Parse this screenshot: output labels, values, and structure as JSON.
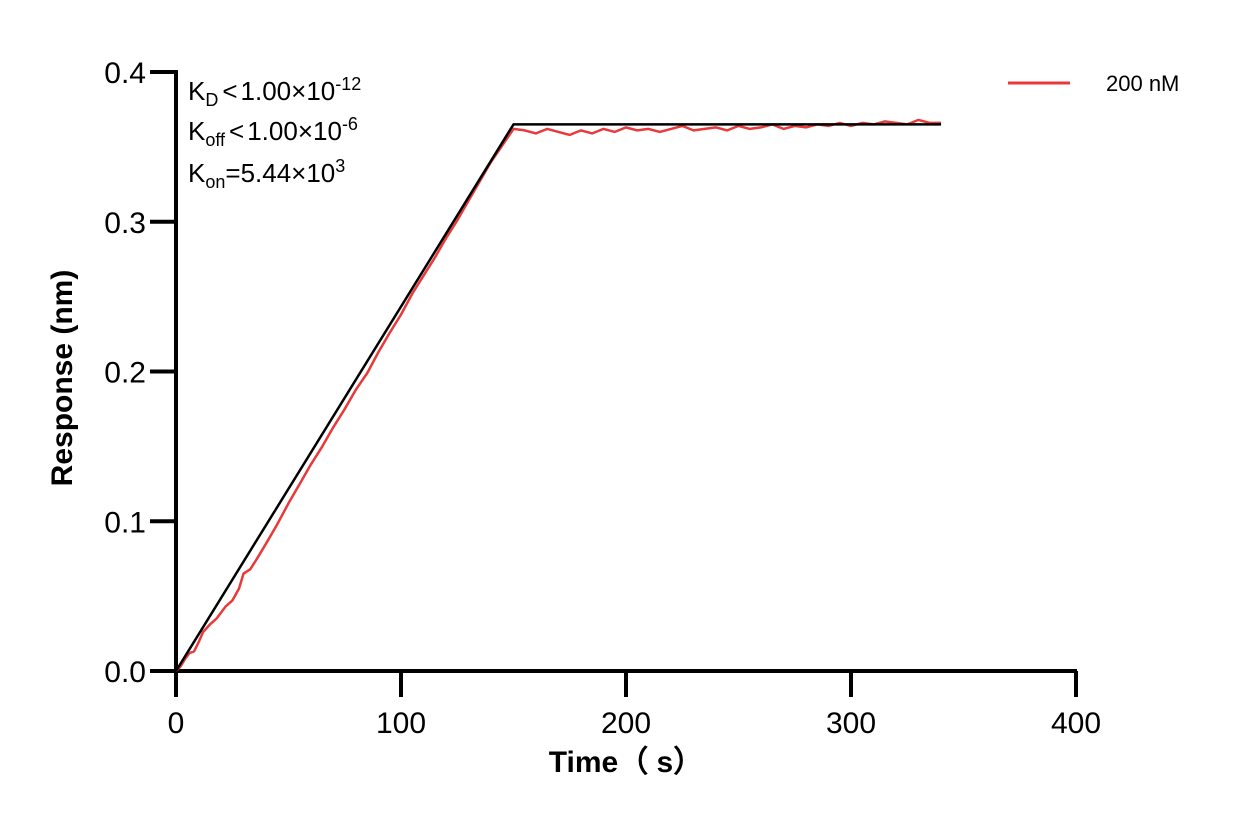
{
  "chart_data": {
    "type": "line",
    "xlabel": "Time（ s）",
    "ylabel": "Response (nm)",
    "xlim": [
      0,
      400
    ],
    "ylim": [
      0,
      0.4
    ],
    "x_ticks": [
      "0",
      "100",
      "200",
      "300",
      "400"
    ],
    "y_ticks": [
      "0.0",
      "0.1",
      "0.2",
      "0.3",
      "0.4"
    ],
    "legend_position": "top-right",
    "annotations": {
      "kd": {
        "base": "K",
        "sub": "D",
        "rel": "<",
        "mantissa": "1.00×10",
        "exp": "-12"
      },
      "koff": {
        "base": "K",
        "sub": "off",
        "rel": "<",
        "mantissa": "1.00×10",
        "exp": "-6"
      },
      "kon": {
        "base": "K",
        "sub": "on",
        "rel": "=",
        "mantissa": "5.44×10",
        "exp": "3"
      }
    },
    "series": [
      {
        "name": "200 nM",
        "color": "#e8393b",
        "x": [
          0,
          2,
          4,
          6,
          8,
          10,
          12,
          15,
          18,
          20,
          22,
          25,
          28,
          30,
          33,
          36,
          40,
          45,
          50,
          55,
          60,
          65,
          70,
          75,
          80,
          85,
          90,
          95,
          100,
          105,
          110,
          115,
          120,
          125,
          130,
          135,
          140,
          145,
          150,
          155,
          160,
          165,
          170,
          175,
          180,
          185,
          190,
          195,
          200,
          205,
          210,
          215,
          220,
          225,
          230,
          235,
          240,
          245,
          250,
          255,
          260,
          265,
          270,
          275,
          280,
          285,
          290,
          295,
          300,
          305,
          310,
          315,
          320,
          325,
          330,
          335,
          340
        ],
        "values": [
          0.0,
          0.003,
          0.008,
          0.012,
          0.013,
          0.019,
          0.026,
          0.031,
          0.035,
          0.039,
          0.043,
          0.047,
          0.055,
          0.065,
          0.068,
          0.075,
          0.085,
          0.098,
          0.112,
          0.125,
          0.138,
          0.15,
          0.163,
          0.175,
          0.188,
          0.199,
          0.213,
          0.226,
          0.238,
          0.252,
          0.264,
          0.276,
          0.289,
          0.301,
          0.314,
          0.327,
          0.34,
          0.351,
          0.362,
          0.361,
          0.359,
          0.362,
          0.36,
          0.358,
          0.361,
          0.359,
          0.362,
          0.36,
          0.363,
          0.361,
          0.362,
          0.36,
          0.362,
          0.364,
          0.361,
          0.362,
          0.363,
          0.361,
          0.364,
          0.362,
          0.363,
          0.365,
          0.362,
          0.364,
          0.363,
          0.365,
          0.364,
          0.366,
          0.364,
          0.366,
          0.365,
          0.367,
          0.366,
          0.365,
          0.368,
          0.366,
          0.366
        ]
      },
      {
        "color": "#000000",
        "x": [
          0,
          150,
          340
        ],
        "values": [
          0.0,
          0.365,
          0.365
        ]
      }
    ]
  }
}
